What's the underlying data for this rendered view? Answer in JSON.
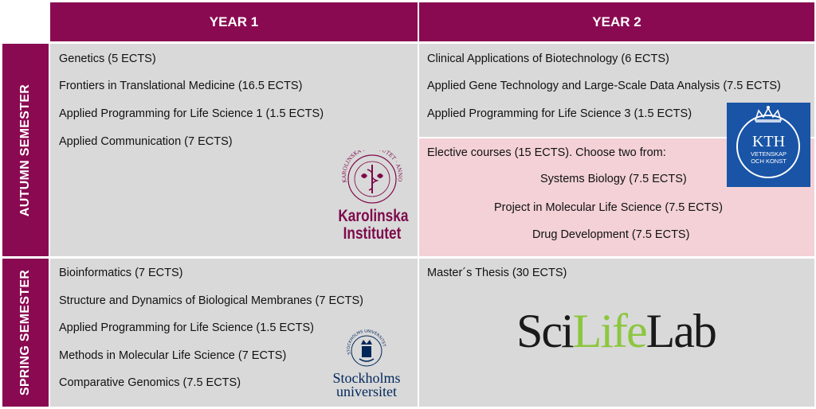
{
  "header": {
    "year1": "YEAR 1",
    "year2": "YEAR 2"
  },
  "semesters": {
    "autumn": "AUTUMN SEMESTER",
    "spring": "SPRING SEMESTER"
  },
  "autumn_year1": [
    "Genetics (5 ECTS)",
    "Frontiers in Translational Medicine (16.5 ECTS)",
    "Applied Programming for Life Science 1 (1.5 ECTS)",
    "Applied Communication (7 ECTS)"
  ],
  "autumn_year2": [
    "Clinical Applications of Biotechnology (6 ECTS)",
    "Applied Gene Technology and Large-Scale Data Analysis (7.5 ECTS)",
    "Applied Programming for Life Science 3 (1.5 ECTS)"
  ],
  "elective": {
    "intro": "Elective courses (15 ECTS). Choose two from:",
    "options": [
      "Systems Biology (7.5 ECTS)",
      "Project in Molecular Life Science (7.5 ECTS)",
      "Drug Development (7.5 ECTS)"
    ]
  },
  "spring_year1": [
    "Bioinformatics (7 ECTS)",
    "Structure and Dynamics of Biological Membranes (7 ECTS)",
    "Applied Programming for Life Science (1.5 ECTS)",
    "Methods in Molecular Life Science (7 ECTS)",
    "Comparative Genomics (7.5 ECTS)"
  ],
  "spring_year2": [
    "Master´s Thesis (30 ECTS)"
  ],
  "logos": {
    "karolinska": {
      "line1": "Karolinska",
      "line2": "Institutet",
      "seal_text": "KAROLINSKA INSTITUTET · ANNO 1810"
    },
    "kth": {
      "name": "KTH",
      "line1": "VETENSKAP",
      "line2": "OCH KONST"
    },
    "stockholm": {
      "line1": "Stockholms",
      "line2": "universitet",
      "seal_text": "STOCKHOLMS UNIVERSITET"
    },
    "scilifelab": {
      "part1": "Sci",
      "part2": "Life",
      "part3": "Lab"
    }
  },
  "colors": {
    "header": "#8a0a52",
    "cell": "#d9d9d9",
    "elective": "#f3d1d6",
    "kth_blue": "#1954a6",
    "karolinska": "#7d0a4b",
    "scilife_green": "#8cc63f",
    "stockholm_blue": "#00275a"
  }
}
